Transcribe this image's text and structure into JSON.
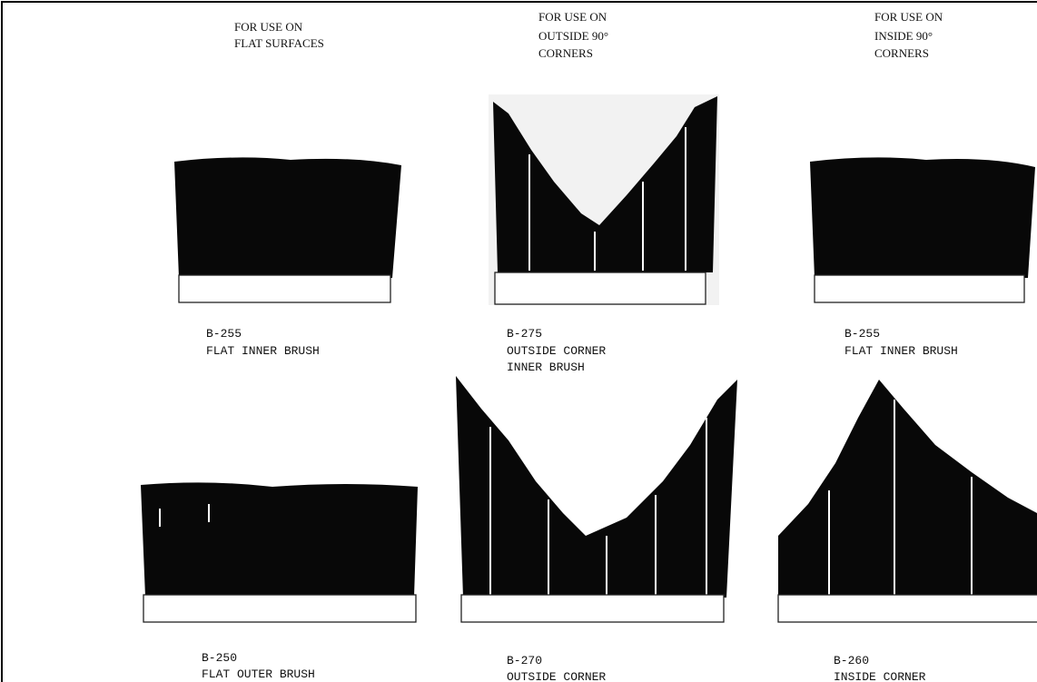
{
  "headers": [
    {
      "lines": [
        "FOR USE ON",
        "FLAT SURFACES"
      ]
    },
    {
      "lines": [
        "FOR USE ON",
        "OUTSIDE 90°",
        "CORNERS"
      ]
    },
    {
      "lines": [
        "FOR USE ON",
        "INSIDE 90°",
        "CORNERS"
      ]
    }
  ],
  "brushes": [
    {
      "code": "B-255",
      "description": [
        "FLAT INNER BRUSH"
      ]
    },
    {
      "code": "B-275",
      "description": [
        "OUTSIDE CORNER",
        "INNER BRUSH"
      ]
    },
    {
      "code": "B-255",
      "description": [
        "FLAT INNER BRUSH"
      ]
    },
    {
      "code": "B-250",
      "description": [
        "FLAT OUTER BRUSH"
      ]
    },
    {
      "code": "B-270",
      "description": [
        "OUTSIDE CORNER"
      ]
    },
    {
      "code": "B-260",
      "description": [
        "INSIDE CORNER"
      ]
    }
  ]
}
